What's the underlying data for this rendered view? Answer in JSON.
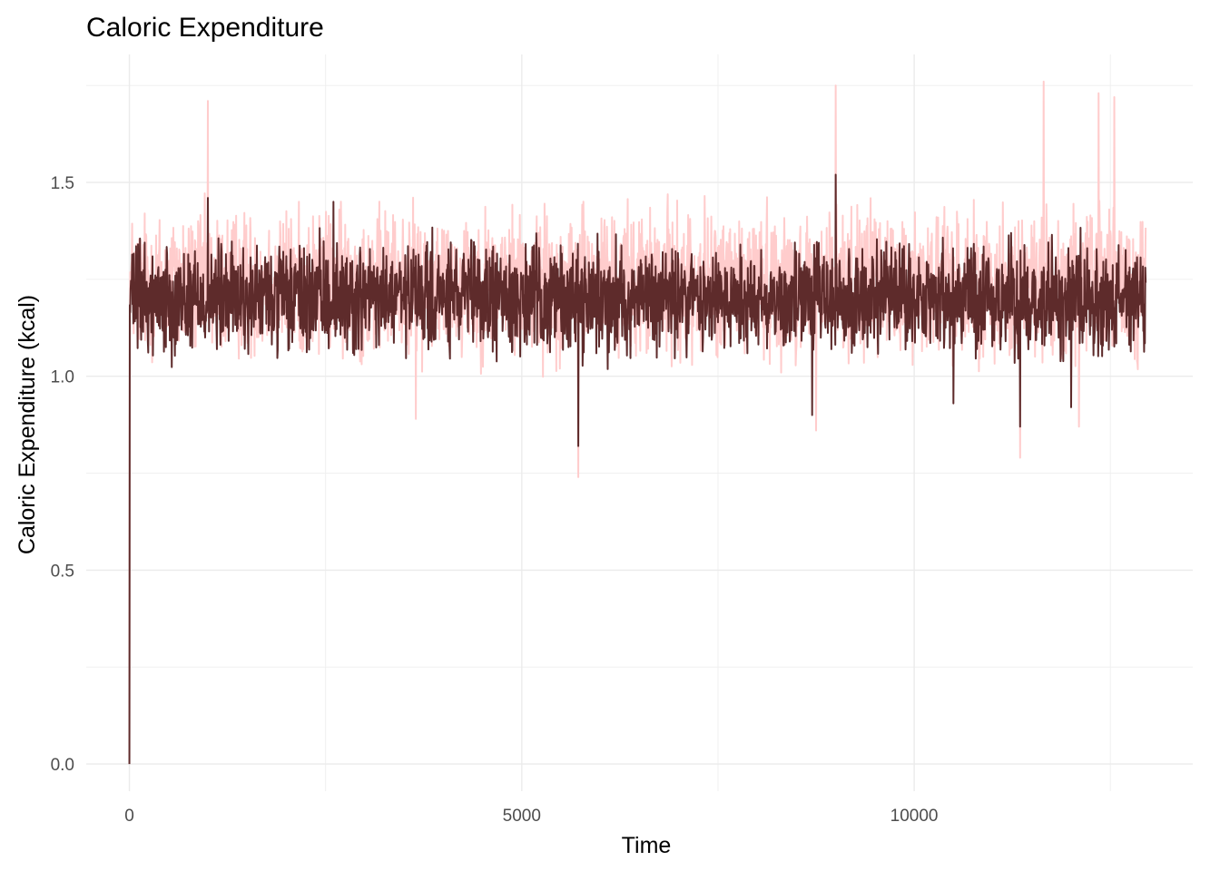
{
  "chart_data": {
    "type": "line",
    "title": "Caloric Expenditure",
    "xlabel": "Time",
    "ylabel": "Caloric Expenditure (kcal)",
    "xlim": [
      -550,
      13550
    ],
    "ylim": [
      -0.07,
      1.83
    ],
    "x_ticks": [
      0,
      5000,
      10000
    ],
    "x_tick_labels": [
      "0",
      "5000",
      "10000"
    ],
    "x_minor_ticks": [
      2500,
      7500,
      12500
    ],
    "y_ticks": [
      0.0,
      0.5,
      1.0,
      1.5
    ],
    "y_tick_labels": [
      "0.0",
      "0.5",
      "1.0",
      "1.5"
    ],
    "y_minor_ticks": [
      0.25,
      0.75,
      1.25,
      1.75
    ],
    "grid": true,
    "legend": "none",
    "x_range": [
      0,
      12950
    ],
    "series": [
      {
        "color": "#ffcccc",
        "stroke_width": 2,
        "start": {
          "x": 0,
          "y": 0.0
        },
        "baseline": 1.24,
        "noise_amplitude": 0.27,
        "spikes_high": [
          [
            1000,
            1.71
          ],
          [
            9000,
            1.75
          ],
          [
            11650,
            1.76
          ],
          [
            12350,
            1.73
          ],
          [
            12550,
            1.72
          ]
        ],
        "spikes_low": [
          [
            5720,
            0.74
          ],
          [
            11350,
            0.79
          ],
          [
            3650,
            0.89
          ],
          [
            8750,
            0.86
          ],
          [
            12100,
            0.87
          ]
        ]
      },
      {
        "color": "#5e2b2b",
        "stroke_width": 2,
        "start": {
          "x": 0,
          "y": 0.0
        },
        "baseline": 1.2,
        "noise_amplitude": 0.2,
        "spikes_high": [
          [
            9000,
            1.52
          ],
          [
            1000,
            1.46
          ],
          [
            2600,
            1.45
          ]
        ],
        "spikes_low": [
          [
            5720,
            0.82
          ],
          [
            11350,
            0.87
          ],
          [
            10500,
            0.93
          ],
          [
            8700,
            0.9
          ],
          [
            12000,
            0.92
          ]
        ]
      }
    ]
  }
}
